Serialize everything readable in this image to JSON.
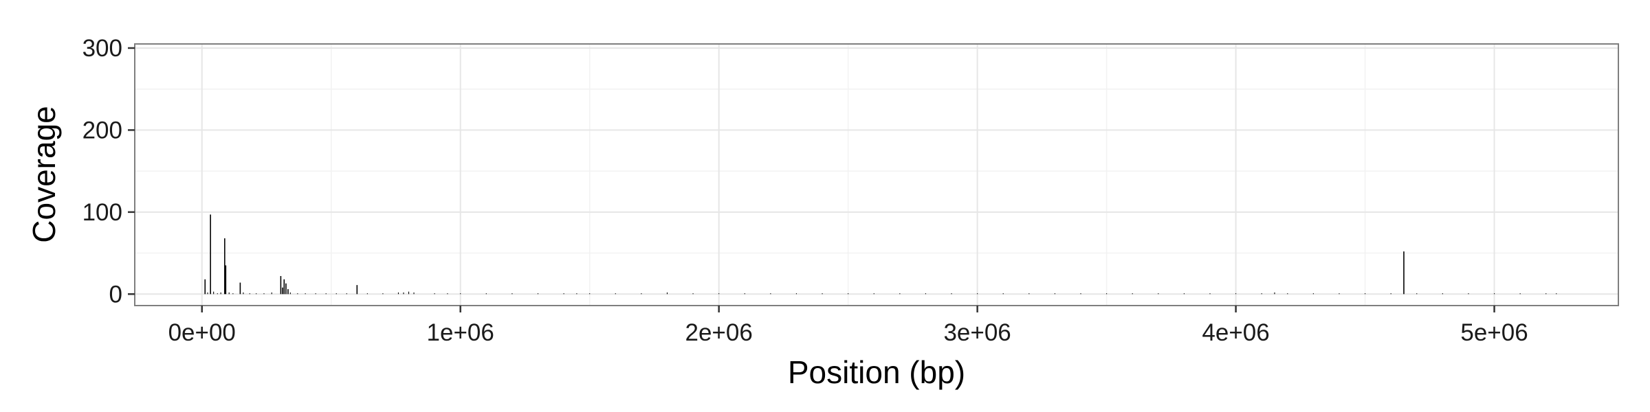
{
  "chart_data": {
    "type": "bar",
    "title": "",
    "xlabel": "Position (bp)",
    "ylabel": "Coverage",
    "xlim": [
      -260000,
      5480000
    ],
    "ylim": [
      -14,
      305
    ],
    "grid": true,
    "x_ticks": [
      {
        "value": 0,
        "label": "0e+00"
      },
      {
        "value": 1000000,
        "label": "1e+06"
      },
      {
        "value": 2000000,
        "label": "2e+06"
      },
      {
        "value": 3000000,
        "label": "3e+06"
      },
      {
        "value": 4000000,
        "label": "4e+06"
      },
      {
        "value": 5000000,
        "label": "5e+06"
      }
    ],
    "y_ticks": [
      {
        "value": 0,
        "label": "0"
      },
      {
        "value": 100,
        "label": "100"
      },
      {
        "value": 200,
        "label": "200"
      },
      {
        "value": 300,
        "label": "300"
      }
    ],
    "series": [
      {
        "color": "#000000",
        "points": [
          [
            12000,
            18
          ],
          [
            22000,
            2
          ],
          [
            33000,
            97
          ],
          [
            45000,
            3
          ],
          [
            60000,
            1
          ],
          [
            73000,
            2
          ],
          [
            88000,
            68
          ],
          [
            92000,
            35
          ],
          [
            105000,
            2
          ],
          [
            120000,
            1
          ],
          [
            148000,
            14
          ],
          [
            160000,
            2
          ],
          [
            185000,
            1
          ],
          [
            210000,
            1
          ],
          [
            240000,
            1
          ],
          [
            270000,
            2
          ],
          [
            305000,
            22
          ],
          [
            312000,
            8
          ],
          [
            318000,
            18
          ],
          [
            325000,
            13
          ],
          [
            333000,
            6
          ],
          [
            342000,
            2
          ],
          [
            370000,
            1
          ],
          [
            400000,
            1
          ],
          [
            440000,
            1
          ],
          [
            480000,
            1
          ],
          [
            520000,
            1
          ],
          [
            560000,
            1
          ],
          [
            600000,
            11
          ],
          [
            640000,
            1
          ],
          [
            700000,
            1
          ],
          [
            760000,
            2
          ],
          [
            780000,
            2
          ],
          [
            800000,
            3
          ],
          [
            820000,
            2
          ],
          [
            900000,
            1
          ],
          [
            950000,
            1
          ],
          [
            1000000,
            1
          ],
          [
            1100000,
            1
          ],
          [
            1200000,
            1
          ],
          [
            1300000,
            1
          ],
          [
            1400000,
            1
          ],
          [
            1450000,
            1
          ],
          [
            1500000,
            1
          ],
          [
            1600000,
            1
          ],
          [
            1700000,
            1
          ],
          [
            1800000,
            2
          ],
          [
            1900000,
            1
          ],
          [
            2000000,
            1
          ],
          [
            2100000,
            1
          ],
          [
            2200000,
            1
          ],
          [
            2300000,
            1
          ],
          [
            2400000,
            1
          ],
          [
            2500000,
            1
          ],
          [
            2600000,
            1
          ],
          [
            2700000,
            1
          ],
          [
            2800000,
            1
          ],
          [
            2900000,
            1
          ],
          [
            3000000,
            1
          ],
          [
            3100000,
            1
          ],
          [
            3200000,
            1
          ],
          [
            3300000,
            1
          ],
          [
            3400000,
            1
          ],
          [
            3500000,
            1
          ],
          [
            3600000,
            1
          ],
          [
            3700000,
            1
          ],
          [
            3800000,
            1
          ],
          [
            3900000,
            1
          ],
          [
            4000000,
            1
          ],
          [
            4100000,
            1
          ],
          [
            4150000,
            2
          ],
          [
            4200000,
            1
          ],
          [
            4300000,
            1
          ],
          [
            4400000,
            1
          ],
          [
            4500000,
            1
          ],
          [
            4600000,
            1
          ],
          [
            4650000,
            52
          ],
          [
            4700000,
            1
          ],
          [
            4800000,
            1
          ],
          [
            4900000,
            1
          ],
          [
            5000000,
            1
          ],
          [
            5100000,
            1
          ],
          [
            5200000,
            1
          ],
          [
            5240000,
            1
          ]
        ]
      }
    ]
  }
}
